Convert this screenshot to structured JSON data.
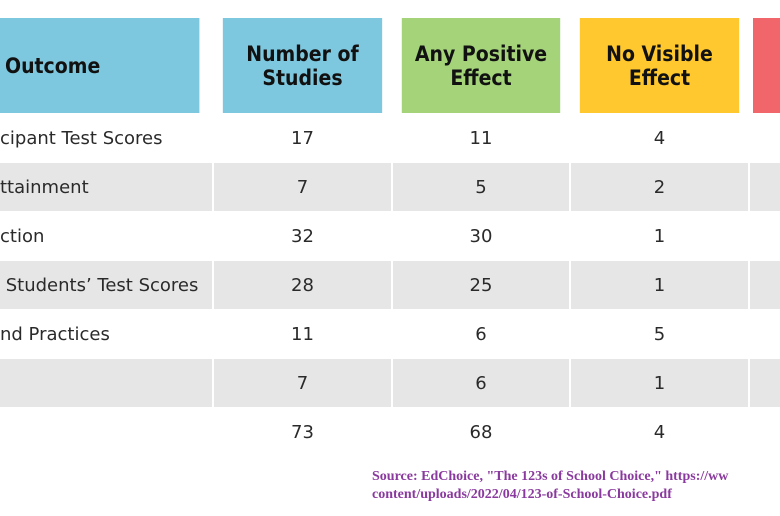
{
  "chart_data": {
    "type": "table",
    "columns": [
      {
        "label": "Outcome",
        "color": "#7ec8df"
      },
      {
        "label": "Number of Studies",
        "color": "#7ec8df"
      },
      {
        "label": "Any Positive Effect",
        "color": "#a4d37a"
      },
      {
        "label": "No Visible Effect",
        "color": "#ffc82e"
      },
      {
        "label": "",
        "color": "#f0666b"
      }
    ],
    "rows": [
      {
        "outcome": "cipant Test Scores",
        "studies": "17",
        "positive": "11",
        "no_effect": "4"
      },
      {
        "outcome": "ttainment",
        "studies": "7",
        "positive": "5",
        "no_effect": "2"
      },
      {
        "outcome": "ction",
        "studies": "32",
        "positive": "30",
        "no_effect": "1"
      },
      {
        "outcome": " Students’ Test Scores",
        "studies": "28",
        "positive": "25",
        "no_effect": "1"
      },
      {
        "outcome": "nd Practices",
        "studies": "11",
        "positive": "6",
        "no_effect": "5"
      },
      {
        "outcome": "",
        "studies": "7",
        "positive": "6",
        "no_effect": "1"
      },
      {
        "outcome": "",
        "studies": "73",
        "positive": "68",
        "no_effect": "4"
      }
    ]
  },
  "source": {
    "line1": "Source: EdChoice, \"The 123s of School Choice,\" https://ww",
    "line2": "content/uploads/2022/04/123-of-School-Choice.pdf"
  }
}
